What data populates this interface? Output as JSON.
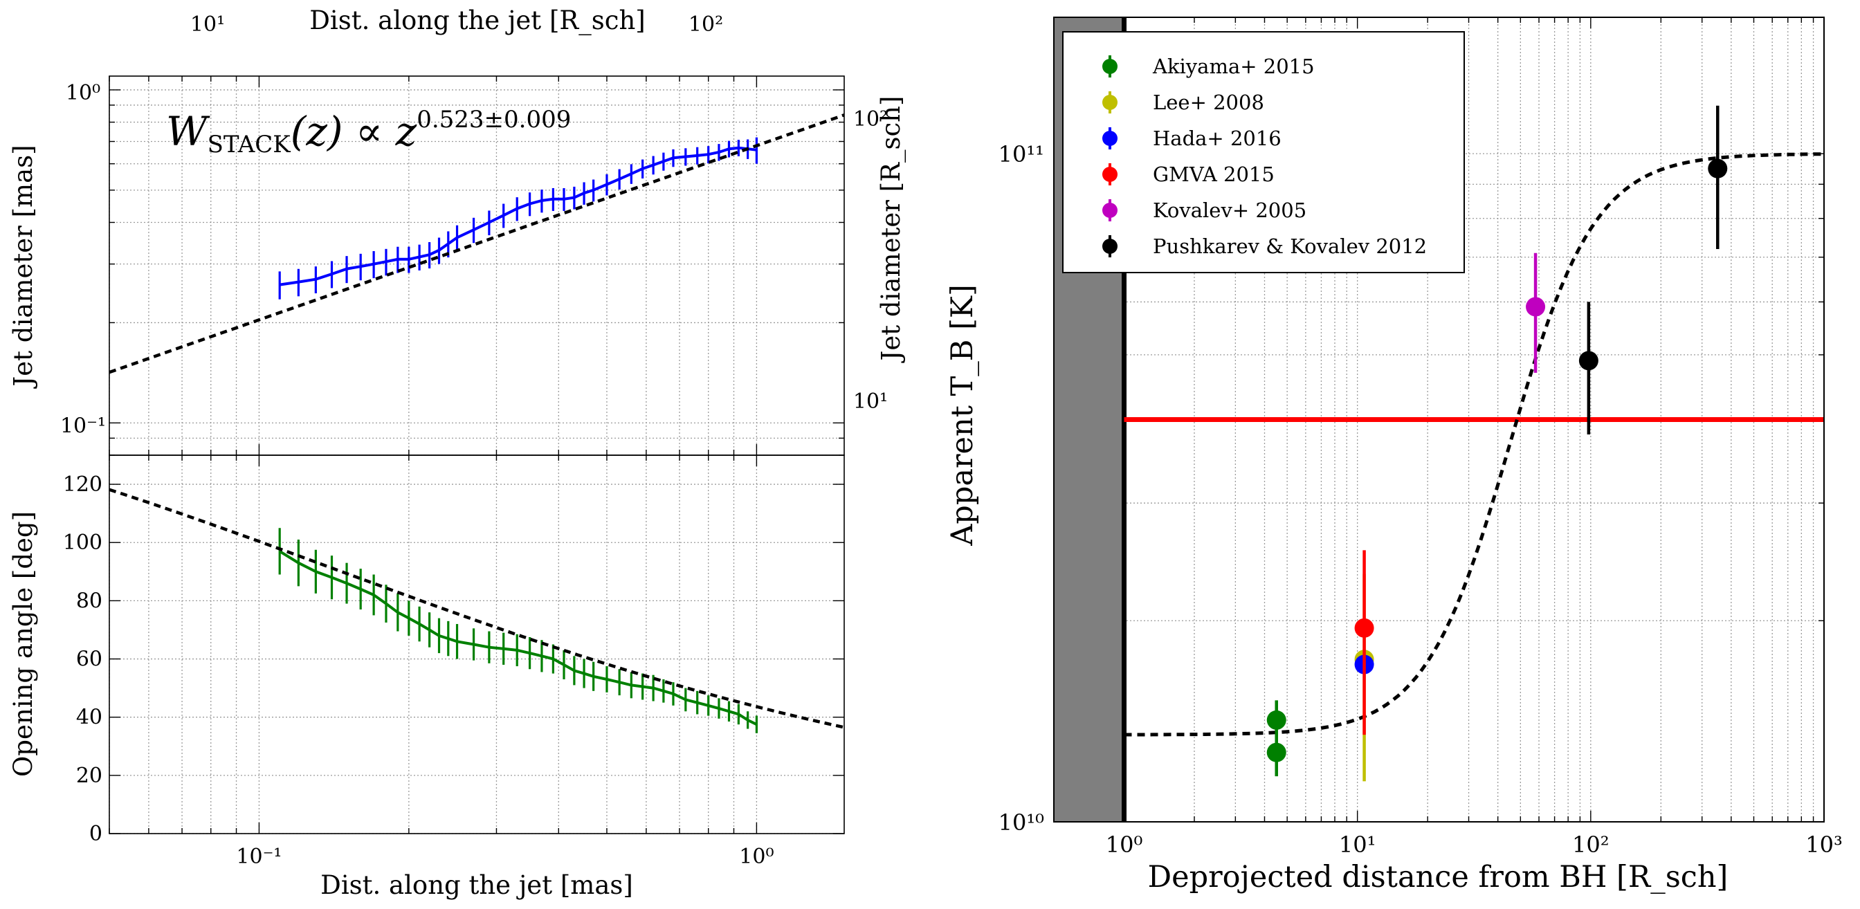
{
  "chart_data": [
    {
      "type": "line",
      "panel": "top-left",
      "title": "",
      "xlabel": "Dist. along the jet [mas]",
      "x2label": "Dist. along the jet [R_sch]",
      "ylabel": "Jet diameter [mas]",
      "y2label": "Jet diameter [R_sch]",
      "xscale": "log",
      "yscale": "log",
      "xlim": [
        0.05,
        1.5
      ],
      "ylim": [
        0.08,
        1.1
      ],
      "grid": true,
      "annotation": {
        "lhs": "W",
        "sub": "STACK",
        "mid": "(z) ∝ z",
        "exp": "0.523±0.009"
      },
      "x_ticks": [
        "10⁻¹",
        "10⁰"
      ],
      "y_ticks": [
        "10⁻¹",
        "10⁰"
      ],
      "x2_ticks": [
        "10¹",
        "10²"
      ],
      "y2_ticks": [
        "10¹",
        "10²"
      ],
      "series": [
        {
          "name": "W_STACK",
          "color": "#0000ff",
          "x": [
            0.11,
            0.12,
            0.13,
            0.14,
            0.15,
            0.16,
            0.17,
            0.18,
            0.19,
            0.2,
            0.21,
            0.22,
            0.23,
            0.24,
            0.25,
            0.27,
            0.29,
            0.31,
            0.33,
            0.35,
            0.37,
            0.39,
            0.41,
            0.43,
            0.45,
            0.47,
            0.5,
            0.53,
            0.56,
            0.59,
            0.62,
            0.65,
            0.68,
            0.72,
            0.76,
            0.8,
            0.84,
            0.88,
            0.92,
            0.96,
            1.0
          ],
          "y": [
            0.26,
            0.265,
            0.27,
            0.28,
            0.29,
            0.295,
            0.3,
            0.305,
            0.31,
            0.31,
            0.315,
            0.32,
            0.33,
            0.345,
            0.36,
            0.38,
            0.4,
            0.42,
            0.44,
            0.455,
            0.465,
            0.47,
            0.47,
            0.475,
            0.49,
            0.5,
            0.52,
            0.54,
            0.56,
            0.58,
            0.595,
            0.61,
            0.625,
            0.63,
            0.635,
            0.64,
            0.65,
            0.665,
            0.67,
            0.665,
            0.66
          ],
          "yerr": [
            0.025,
            0.025,
            0.025,
            0.026,
            0.027,
            0.027,
            0.028,
            0.028,
            0.028,
            0.028,
            0.028,
            0.029,
            0.03,
            0.031,
            0.032,
            0.033,
            0.034,
            0.035,
            0.036,
            0.037,
            0.037,
            0.037,
            0.037,
            0.037,
            0.038,
            0.038,
            0.038,
            0.038,
            0.038,
            0.038,
            0.038,
            0.038,
            0.038,
            0.038,
            0.038,
            0.038,
            0.038,
            0.038,
            0.038,
            0.045,
            0.06
          ]
        },
        {
          "name": "fit",
          "style": "dashed",
          "color": "#000000",
          "exponent": 0.523,
          "amplitude": 0.68
        }
      ]
    },
    {
      "type": "line",
      "panel": "bottom-left",
      "xlabel": "Dist. along the jet [mas]",
      "ylabel": "Opening angle [deg]",
      "xscale": "log",
      "yscale": "linear",
      "xlim": [
        0.05,
        1.5
      ],
      "ylim": [
        0,
        130
      ],
      "grid": true,
      "y_ticks": [
        "0",
        "20",
        "40",
        "60",
        "80",
        "100",
        "120"
      ],
      "x_ticks": [
        "10⁻¹",
        "10⁰"
      ],
      "series": [
        {
          "name": "opening angle",
          "color": "#008000",
          "x": [
            0.11,
            0.12,
            0.13,
            0.14,
            0.15,
            0.16,
            0.17,
            0.18,
            0.19,
            0.2,
            0.21,
            0.22,
            0.23,
            0.24,
            0.25,
            0.27,
            0.29,
            0.31,
            0.33,
            0.35,
            0.37,
            0.39,
            0.41,
            0.43,
            0.45,
            0.47,
            0.5,
            0.53,
            0.56,
            0.59,
            0.62,
            0.65,
            0.68,
            0.72,
            0.76,
            0.8,
            0.84,
            0.88,
            0.92,
            0.96,
            1.0
          ],
          "y": [
            97,
            93,
            90,
            88,
            86,
            84,
            82,
            79,
            76,
            74,
            72,
            70,
            68,
            67,
            66,
            65,
            64,
            63.5,
            63,
            62,
            61,
            60,
            58,
            56,
            55,
            54,
            53,
            52,
            51,
            50.5,
            50,
            49,
            48,
            46,
            45,
            44,
            43,
            42,
            41,
            39,
            37.5
          ],
          "yerr": [
            8,
            8,
            7.5,
            7.5,
            7,
            7,
            7,
            6.5,
            6.5,
            6,
            6,
            6,
            6,
            6,
            6,
            5.5,
            5.5,
            5.5,
            5.5,
            5.5,
            5.5,
            5,
            5,
            5,
            5,
            5,
            4.5,
            4.5,
            4.5,
            4.5,
            4.5,
            4,
            4,
            4,
            4,
            3.5,
            3.5,
            3.5,
            3.5,
            3,
            3
          ]
        },
        {
          "name": "fit",
          "style": "dashed",
          "color": "#000000",
          "model": "opening angle from diameter fit"
        }
      ]
    },
    {
      "type": "scatter",
      "panel": "right",
      "xlabel": "Deprojected distance from BH [R_sch]",
      "ylabel": "Apparent T_B [K]",
      "xscale": "log",
      "yscale": "log",
      "xlim": [
        0.5,
        1000
      ],
      "ylim": [
        10000000000.0,
        160000000000.0
      ],
      "grid": true,
      "x_ticks": [
        "10⁰",
        "10¹",
        "10²",
        "10³"
      ],
      "y_ticks": [
        "10¹⁰",
        "10¹¹"
      ],
      "hline": 40000000000.0,
      "hline_color": "#ff0000",
      "shaded_region": [
        0.5,
        1.0
      ],
      "vline": 1.0,
      "legend_location": "top-left",
      "series": [
        {
          "name": "Akiyama+ 2015",
          "color": "#008000",
          "points": [
            [
              4.5,
              14200000000.0,
              1000000000.0
            ],
            [
              4.5,
              12700000000.0,
              1000000000.0
            ]
          ]
        },
        {
          "name": "Lee+ 2008",
          "color": "#bfbf00",
          "points": [
            [
              10.7,
              17500000000.0,
              6000000000.0
            ]
          ]
        },
        {
          "name": "Hada+ 2016",
          "color": "#0000ff",
          "points": [
            [
              10.7,
              17200000000.0,
              0.0
            ]
          ]
        },
        {
          "name": "GMVA 2015",
          "color": "#ff0000",
          "points": [
            [
              10.7,
              19500000000.0,
              6000000000.0
            ]
          ]
        },
        {
          "name": "Kovalev+ 2005",
          "color": "#bf00bf",
          "points": [
            [
              58,
              59000000000.0,
              12000000000.0
            ]
          ]
        },
        {
          "name": "Pushkarev & Kovalev 2012",
          "color": "#000000",
          "points": [
            [
              98,
              49000000000.0,
              11000000000.0
            ],
            [
              350,
              95000000000.0,
              23000000000.0
            ]
          ]
        }
      ],
      "fit": {
        "style": "dashed",
        "color": "#000000",
        "low": 13500000000.0,
        "high": 100000000000.0,
        "x0": 45,
        "width": 0.4
      }
    }
  ]
}
